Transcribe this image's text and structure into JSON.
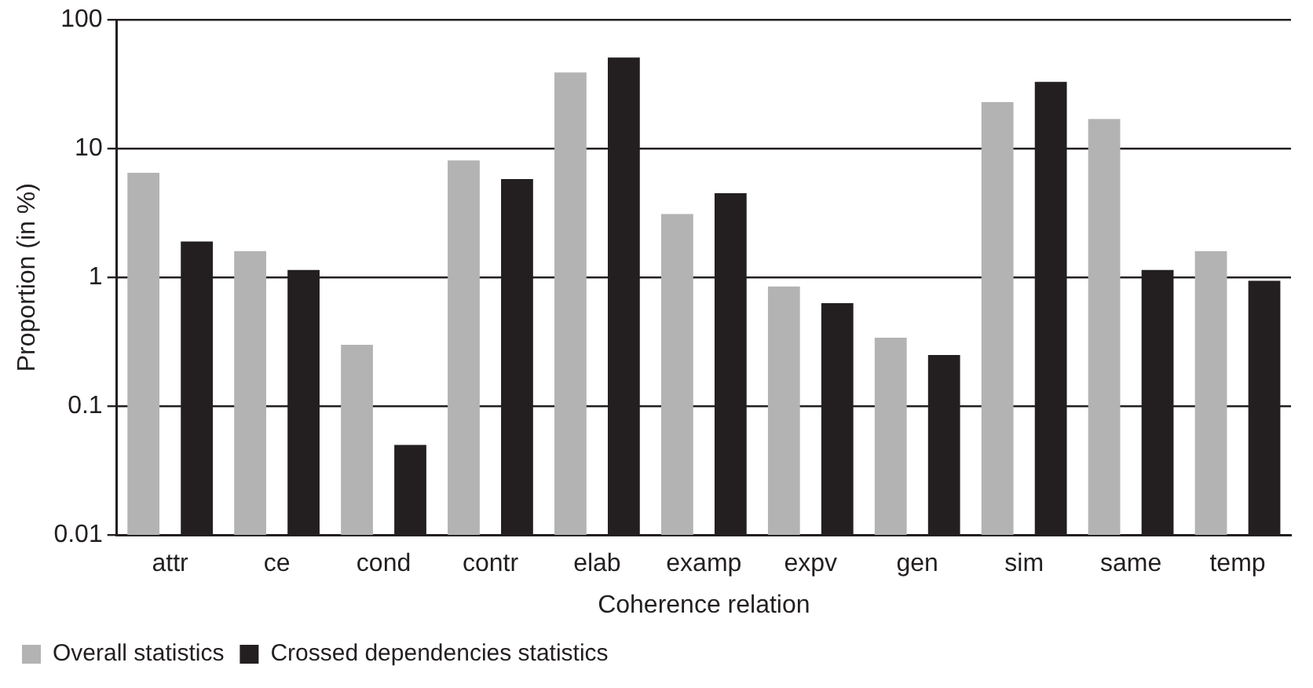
{
  "chart_data": {
    "type": "bar",
    "xlabel": "Coherence relation",
    "ylabel": "Proportion (in %)",
    "categories": [
      "attr",
      "ce",
      "cond",
      "contr",
      "elab",
      "examp",
      "expv",
      "gen",
      "sim",
      "same",
      "temp"
    ],
    "series": [
      {
        "name": "Overall statistics",
        "color": "#b3b3b3",
        "values": [
          6.5,
          1.6,
          0.3,
          8.1,
          39,
          3.1,
          0.85,
          0.34,
          23,
          17,
          1.6
        ]
      },
      {
        "name": "Crossed dependencies statistics",
        "color": "#231f20",
        "values": [
          1.9,
          1.14,
          0.05,
          5.8,
          51,
          4.5,
          0.63,
          0.25,
          33,
          1.14,
          0.94
        ]
      }
    ],
    "log": "y",
    "ylim": [
      0.01,
      100
    ],
    "yticks": [
      0.01,
      0.1,
      1,
      10,
      100
    ],
    "grid": "y",
    "legend": "bottom left"
  }
}
